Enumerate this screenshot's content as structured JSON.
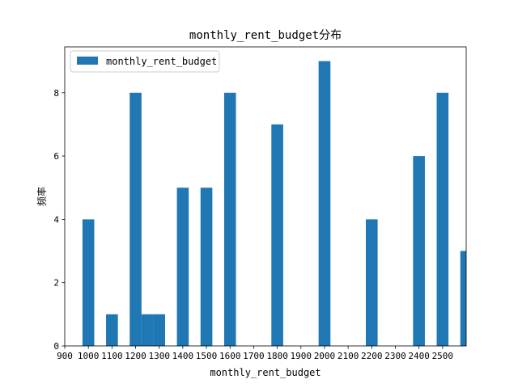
{
  "chart_data": {
    "type": "bar",
    "title": "monthly_rent_budget分布",
    "xlabel": "monthly_rent_budget",
    "ylabel": "频率",
    "xlim": [
      900,
      2600
    ],
    "ylim": [
      0,
      9.45
    ],
    "x_ticks": [
      900,
      1000,
      1100,
      1200,
      1300,
      1400,
      1500,
      1600,
      1700,
      1800,
      1900,
      2000,
      2100,
      2200,
      2300,
      2400,
      2500
    ],
    "x_tick_labels": [
      "900",
      "1000",
      "1100",
      "1200",
      "1300",
      "1400",
      "1500",
      "1600",
      "1700",
      "1800",
      "1900",
      "2000",
      "2100",
      "2200",
      "2300",
      "2400",
      "2500"
    ],
    "y_ticks": [
      0,
      2,
      4,
      6,
      8
    ],
    "y_tick_labels": [
      "0",
      "2",
      "4",
      "6",
      "8"
    ],
    "grid": false,
    "legend_position": "top-left",
    "series": [
      {
        "name": "monthly_rent_budget",
        "color": "#1f77b4",
        "bins": [
          {
            "x0": 975,
            "x1": 1025,
            "value": 4
          },
          {
            "x0": 1075,
            "x1": 1125,
            "value": 1
          },
          {
            "x0": 1175,
            "x1": 1225,
            "value": 8
          },
          {
            "x0": 1225,
            "x1": 1275,
            "value": 1
          },
          {
            "x0": 1275,
            "x1": 1325,
            "value": 1
          },
          {
            "x0": 1375,
            "x1": 1425,
            "value": 5
          },
          {
            "x0": 1475,
            "x1": 1525,
            "value": 5
          },
          {
            "x0": 1575,
            "x1": 1625,
            "value": 8
          },
          {
            "x0": 1775,
            "x1": 1825,
            "value": 7
          },
          {
            "x0": 1975,
            "x1": 2025,
            "value": 9
          },
          {
            "x0": 2175,
            "x1": 2225,
            "value": 4
          },
          {
            "x0": 2375,
            "x1": 2425,
            "value": 6
          },
          {
            "x0": 2475,
            "x1": 2525,
            "value": 8
          },
          {
            "x0": 2575,
            "x1": 2625,
            "value": 3
          }
        ]
      }
    ]
  }
}
